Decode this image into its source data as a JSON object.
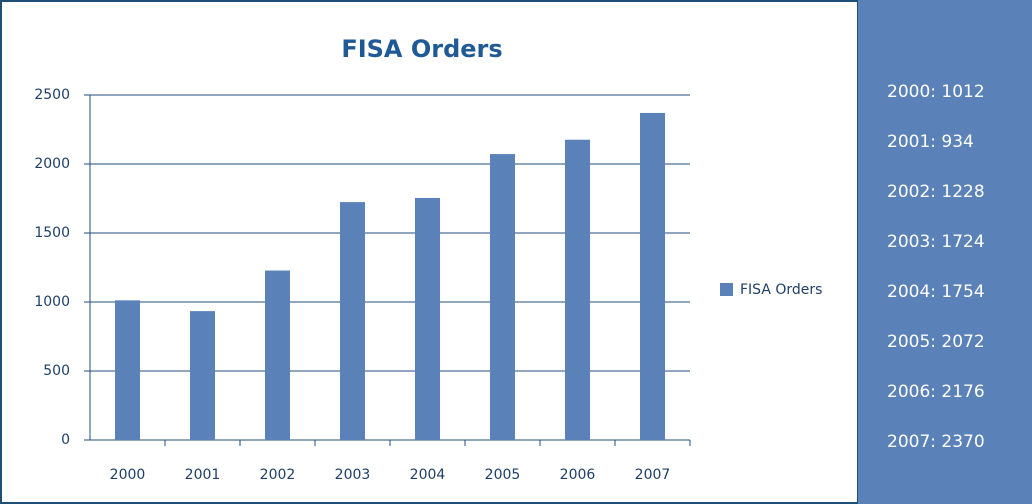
{
  "chart_data": {
    "type": "bar",
    "title": "FISA Orders",
    "categories": [
      "2000",
      "2001",
      "2002",
      "2003",
      "2004",
      "2005",
      "2006",
      "2007"
    ],
    "series": [
      {
        "name": "FISA Orders",
        "color": "#5b82b8",
        "values": [
          1012,
          934,
          1228,
          1724,
          1754,
          2072,
          2176,
          2370
        ],
        "value_labels": [
          "2000: 1012",
          "2001: 934",
          "2002: 1228",
          "2003: 1724",
          "2004: 1754",
          "2005: 2072",
          "2006: 2176",
          "2007: 2370"
        ]
      }
    ],
    "ylim": [
      0,
      2500
    ],
    "yticks": [
      0,
      500,
      1000,
      1500,
      2000,
      2500
    ],
    "grid": true,
    "legend": "right"
  }
}
